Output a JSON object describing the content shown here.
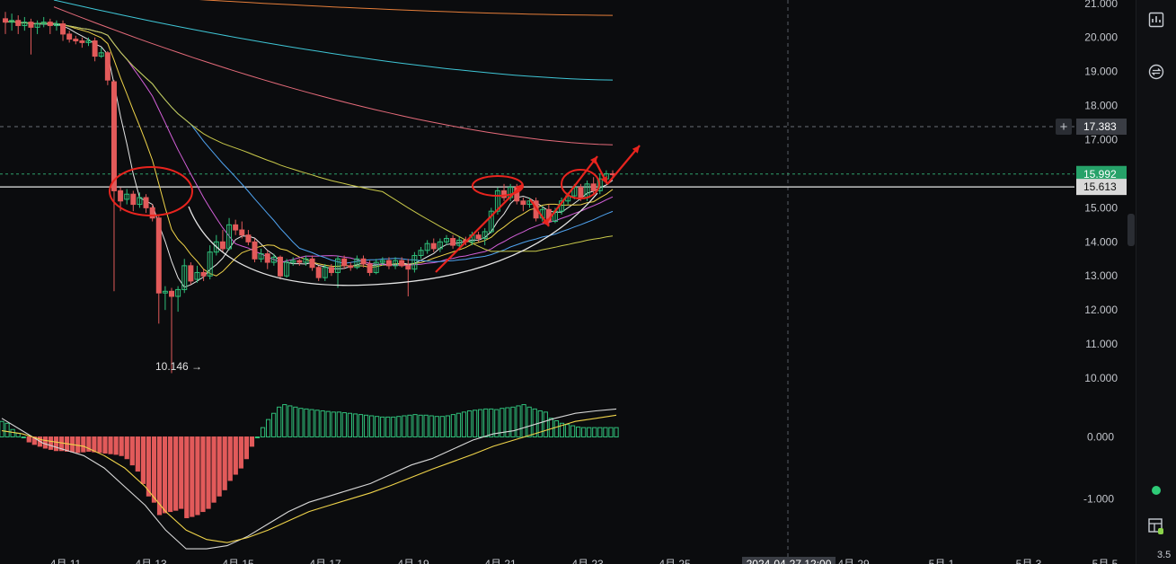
{
  "chart_data": [
    {
      "type": "candlestick",
      "x_ticks": [
        "4月 11",
        "4月 13",
        "4月 15",
        "4月 17",
        "4月 19",
        "4月 21",
        "4月 23",
        "4月 25",
        "4月 29",
        "5月 1",
        "5月 3",
        "5月 5"
      ],
      "crosshair_date": "2024-04-27 12:00",
      "y_ticks": [
        "21.000",
        "20.000",
        "19.000",
        "18.000",
        "17.000",
        "15.000",
        "14.000",
        "13.000",
        "12.000",
        "11.000",
        "10.000"
      ],
      "ylim": [
        9.5,
        21.1
      ],
      "price_labels": {
        "crosshair": "17.383",
        "last": "15.992",
        "horizontal_line": "15.613"
      },
      "low_annotation": "10.146",
      "candles": [
        [
          20.55,
          20.45,
          20.75,
          20.1
        ],
        [
          20.45,
          20.5,
          20.7,
          20.2
        ],
        [
          20.5,
          20.35,
          20.65,
          20.1
        ],
        [
          20.35,
          20.45,
          20.6,
          20.2
        ],
        [
          20.45,
          20.3,
          20.55,
          19.5
        ],
        [
          20.3,
          20.4,
          20.5,
          20.1
        ],
        [
          20.4,
          20.45,
          20.6,
          20.3
        ],
        [
          20.45,
          20.35,
          20.55,
          20.1
        ],
        [
          20.35,
          20.4,
          20.5,
          20.2
        ],
        [
          20.4,
          20.1,
          20.5,
          19.9
        ],
        [
          20.1,
          19.95,
          20.2,
          19.85
        ],
        [
          19.95,
          19.9,
          20.05,
          19.8
        ],
        [
          19.9,
          19.85,
          20.0,
          19.7
        ],
        [
          19.85,
          19.9,
          20.0,
          19.75
        ],
        [
          19.9,
          19.45,
          20.0,
          19.3
        ],
        [
          19.45,
          19.55,
          19.7,
          19.4
        ],
        [
          19.55,
          18.75,
          19.6,
          18.6
        ],
        [
          18.7,
          15.5,
          18.75,
          12.55
        ],
        [
          15.5,
          15.2,
          15.6,
          14.9
        ],
        [
          15.25,
          15.4,
          15.55,
          15.1
        ],
        [
          15.4,
          15.1,
          15.5,
          14.9
        ],
        [
          15.1,
          15.3,
          15.45,
          15.0
        ],
        [
          15.3,
          15.0,
          15.4,
          14.85
        ],
        [
          15.0,
          14.7,
          15.1,
          14.6
        ],
        [
          14.7,
          12.5,
          14.8,
          11.6
        ],
        [
          12.5,
          12.55,
          12.7,
          12.0
        ],
        [
          12.55,
          12.4,
          12.65,
          10.146
        ],
        [
          12.4,
          12.6,
          12.7,
          11.95
        ],
        [
          12.6,
          13.3,
          13.5,
          12.5
        ],
        [
          13.3,
          12.85,
          13.4,
          12.75
        ],
        [
          12.9,
          13.1,
          13.3,
          12.8
        ],
        [
          13.1,
          13.0,
          13.2,
          12.85
        ],
        [
          13.0,
          13.7,
          13.9,
          12.9
        ],
        [
          13.7,
          14.0,
          14.2,
          13.6
        ],
        [
          14.0,
          13.8,
          14.35,
          13.7
        ],
        [
          13.8,
          14.5,
          14.7,
          13.75
        ],
        [
          14.5,
          14.35,
          14.65,
          14.2
        ],
        [
          14.35,
          14.2,
          14.6,
          14.1
        ],
        [
          14.2,
          14.0,
          14.35,
          13.9
        ],
        [
          14.0,
          13.5,
          14.1,
          13.4
        ],
        [
          13.5,
          13.65,
          13.8,
          13.4
        ],
        [
          13.65,
          13.4,
          13.75,
          13.2
        ],
        [
          13.4,
          13.55,
          13.65,
          13.3
        ],
        [
          13.55,
          13.0,
          13.6,
          12.9
        ],
        [
          13.0,
          13.4,
          13.5,
          12.95
        ],
        [
          13.4,
          13.45,
          13.55,
          13.3
        ],
        [
          13.45,
          13.4,
          13.5,
          13.3
        ],
        [
          13.4,
          13.5,
          13.6,
          13.3
        ],
        [
          13.5,
          13.25,
          13.6,
          13.15
        ],
        [
          13.25,
          12.95,
          13.3,
          12.85
        ],
        [
          12.95,
          13.25,
          13.35,
          12.85
        ],
        [
          13.25,
          13.1,
          13.35,
          13.0
        ],
        [
          13.1,
          13.5,
          13.6,
          12.65
        ],
        [
          13.5,
          13.3,
          13.6,
          13.2
        ],
        [
          13.3,
          13.25,
          13.4,
          13.15
        ],
        [
          13.25,
          13.5,
          13.6,
          13.2
        ],
        [
          13.5,
          13.35,
          13.6,
          13.25
        ],
        [
          13.35,
          13.1,
          13.45,
          13.0
        ],
        [
          13.1,
          13.4,
          13.5,
          13.05
        ],
        [
          13.4,
          13.45,
          13.55,
          13.3
        ],
        [
          13.45,
          13.3,
          13.55,
          13.2
        ],
        [
          13.3,
          13.45,
          13.55,
          13.2
        ],
        [
          13.45,
          13.3,
          13.55,
          13.25
        ],
        [
          13.3,
          13.2,
          13.5,
          12.4
        ],
        [
          13.2,
          13.6,
          13.7,
          13.1
        ],
        [
          13.6,
          13.75,
          13.85,
          13.5
        ],
        [
          13.75,
          13.95,
          14.05,
          13.65
        ],
        [
          13.95,
          13.8,
          14.1,
          13.7
        ],
        [
          13.8,
          14.0,
          14.1,
          13.7
        ],
        [
          14.0,
          14.1,
          14.2,
          13.9
        ],
        [
          14.1,
          13.9,
          14.2,
          13.8
        ],
        [
          13.9,
          14.05,
          14.15,
          13.85
        ],
        [
          14.05,
          14.0,
          14.15,
          13.9
        ],
        [
          14.0,
          14.2,
          14.3,
          13.9
        ],
        [
          14.2,
          14.1,
          14.3,
          14.0
        ],
        [
          14.1,
          14.3,
          14.4,
          13.9
        ],
        [
          14.3,
          14.9,
          15.0,
          14.25
        ],
        [
          14.9,
          15.5,
          15.6,
          14.8
        ],
        [
          15.5,
          15.3,
          15.7,
          15.2
        ],
        [
          15.3,
          15.6,
          15.7,
          15.2
        ],
        [
          15.6,
          15.2,
          15.7,
          15.1
        ],
        [
          15.2,
          15.1,
          15.3,
          14.9
        ],
        [
          15.1,
          15.2,
          15.3,
          15.0
        ],
        [
          15.2,
          14.7,
          15.3,
          14.6
        ],
        [
          14.7,
          14.95,
          15.05,
          14.6
        ],
        [
          14.95,
          14.6,
          15.1,
          14.5
        ],
        [
          14.6,
          14.9,
          15.0,
          14.55
        ],
        [
          14.9,
          15.2,
          15.3,
          14.8
        ],
        [
          15.2,
          15.35,
          15.45,
          15.1
        ],
        [
          15.35,
          15.6,
          15.7,
          15.25
        ],
        [
          15.6,
          15.3,
          15.7,
          15.2
        ],
        [
          15.3,
          15.7,
          15.8,
          15.2
        ],
        [
          15.7,
          15.5,
          15.9,
          15.4
        ],
        [
          15.5,
          15.85,
          16.0,
          15.4
        ],
        [
          15.85,
          16.0,
          16.1,
          15.7
        ],
        [
          16.0,
          15.992,
          16.1,
          15.85
        ]
      ]
    },
    {
      "type": "histogram",
      "y_ticks": [
        "0.000",
        "-1.000"
      ],
      "ylim": [
        -1.9,
        0.6
      ],
      "values": [
        0.25,
        0.22,
        0.12,
        0.06,
        0.0,
        -0.08,
        -0.12,
        -0.15,
        -0.18,
        -0.2,
        -0.22,
        -0.22,
        -0.23,
        -0.24,
        -0.25,
        -0.24,
        -0.23,
        -0.24,
        -0.25,
        -0.26,
        -0.27,
        -0.28,
        -0.3,
        -0.35,
        -0.45,
        -0.55,
        -0.75,
        -0.95,
        -1.05,
        -1.25,
        -1.22,
        -1.2,
        -1.18,
        -1.15,
        -1.3,
        -1.28,
        -1.25,
        -1.2,
        -1.15,
        -1.05,
        -0.95,
        -0.85,
        -0.7,
        -0.6,
        -0.5,
        -0.35,
        -0.15,
        0.0,
        0.15,
        0.28,
        0.38,
        0.48,
        0.52,
        0.5,
        0.48,
        0.46,
        0.45,
        0.44,
        0.43,
        0.42,
        0.41,
        0.4,
        0.4,
        0.39,
        0.38,
        0.37,
        0.36,
        0.35,
        0.34,
        0.33,
        0.32,
        0.32,
        0.32,
        0.33,
        0.34,
        0.35,
        0.36,
        0.35,
        0.35,
        0.34,
        0.33,
        0.33,
        0.34,
        0.36,
        0.38,
        0.4,
        0.42,
        0.43,
        0.44,
        0.45,
        0.45,
        0.44,
        0.46,
        0.47,
        0.48,
        0.5,
        0.52,
        0.48,
        0.45,
        0.42,
        0.4,
        0.3,
        0.26,
        0.22,
        0.2,
        0.18,
        0.16,
        0.15,
        0.15,
        0.15,
        0.15,
        0.15,
        0.15,
        0.15
      ],
      "dif": [
        0.3,
        0.1,
        -0.1,
        -0.2,
        -0.3,
        -0.5,
        -0.8,
        -1.1,
        -1.5,
        -1.8,
        -1.8,
        -1.75,
        -1.6,
        -1.4,
        -1.2,
        -1.05,
        -0.95,
        -0.85,
        -0.75,
        -0.6,
        -0.45,
        -0.35,
        -0.2,
        -0.05,
        0.05,
        0.1,
        0.2,
        0.3,
        0.38,
        0.42,
        0.45
      ],
      "dea": [
        0.1,
        0.05,
        -0.05,
        -0.1,
        -0.15,
        -0.3,
        -0.5,
        -0.8,
        -1.2,
        -1.5,
        -1.65,
        -1.7,
        -1.62,
        -1.5,
        -1.35,
        -1.2,
        -1.1,
        -1.0,
        -0.9,
        -0.78,
        -0.65,
        -0.52,
        -0.4,
        -0.28,
        -0.15,
        -0.05,
        0.05,
        0.15,
        0.25,
        0.3,
        0.35
      ]
    }
  ],
  "sidebar": {
    "zoom_value": "3.5"
  }
}
